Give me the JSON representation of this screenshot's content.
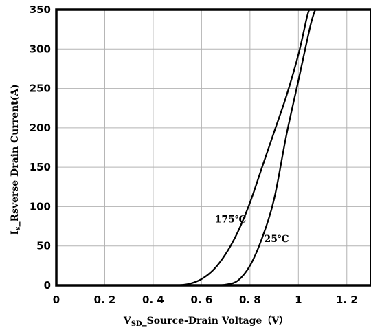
{
  "chart_data": {
    "type": "line",
    "xlabel_main": "V",
    "xlabel_sub": "SD",
    "xlabel_rest": "_Source-Drain Voltage（V）",
    "ylabel_main": "I",
    "ylabel_sub": "s",
    "ylabel_rest": "_Rsverse Drain Current(A)",
    "xlim": [
      0,
      1.3
    ],
    "ylim": [
      0,
      350
    ],
    "x_ticks": [
      0,
      0.2,
      0.4,
      0.6,
      0.8,
      1.0,
      1.2
    ],
    "x_tick_labels": [
      "0",
      "0. 2",
      "0. 4",
      "0. 6",
      "0. 8",
      "1",
      "1. 2"
    ],
    "y_ticks": [
      0,
      50,
      100,
      150,
      200,
      250,
      300,
      350
    ],
    "y_tick_labels": [
      "0",
      "50",
      "100",
      "150",
      "200",
      "250",
      "300",
      "350"
    ],
    "grid": true,
    "series": [
      {
        "name": "175℃",
        "points": [
          [
            0.5,
            0
          ],
          [
            0.55,
            2
          ],
          [
            0.6,
            8
          ],
          [
            0.65,
            20
          ],
          [
            0.7,
            40
          ],
          [
            0.75,
            68
          ],
          [
            0.8,
            105
          ],
          [
            0.85,
            150
          ],
          [
            0.9,
            195
          ],
          [
            0.95,
            240
          ],
          [
            1.0,
            293
          ],
          [
            1.035,
            340
          ],
          [
            1.045,
            350
          ]
        ]
      },
      {
        "name": "25℃",
        "points": [
          [
            0.66,
            0
          ],
          [
            0.7,
            1
          ],
          [
            0.75,
            6
          ],
          [
            0.8,
            25
          ],
          [
            0.85,
            60
          ],
          [
            0.9,
            110
          ],
          [
            0.95,
            190
          ],
          [
            1.0,
            260
          ],
          [
            1.05,
            330
          ],
          [
            1.07,
            350
          ]
        ]
      }
    ],
    "annotations": [
      {
        "text": "175℃",
        "x": 0.72,
        "y": 80
      },
      {
        "text": "25℃",
        "x": 0.91,
        "y": 55
      }
    ]
  }
}
